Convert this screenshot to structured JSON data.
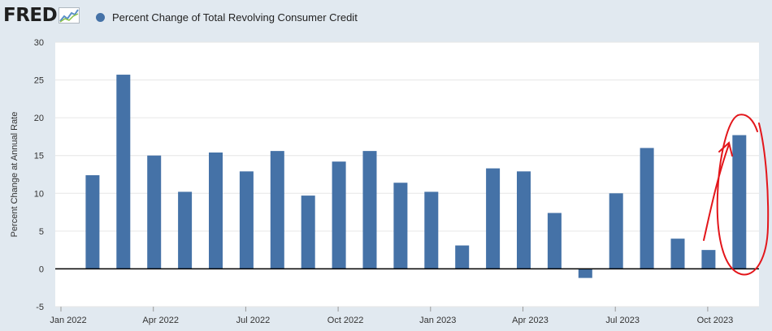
{
  "header": {
    "logo_text": "FRED",
    "legend_label": "Percent Change of Total Revolving Consumer Credit",
    "series_color": "#4572a7"
  },
  "chart_data": {
    "type": "bar",
    "ylabel": "Percent Change at Annual Rate",
    "ylim": [
      -5,
      30
    ],
    "yticks": [
      -5,
      0,
      5,
      10,
      15,
      20,
      25,
      30
    ],
    "grid": true,
    "x_tick_labels": [
      "Jan 2022",
      "Apr 2022",
      "Jul 2022",
      "Oct 2022",
      "Jan 2023",
      "Apr 2023",
      "Jul 2023",
      "Oct 2023"
    ],
    "categories": [
      "2022-02",
      "2022-03",
      "2022-04",
      "2022-05",
      "2022-06",
      "2022-07",
      "2022-08",
      "2022-09",
      "2022-10",
      "2022-11",
      "2022-12",
      "2023-01",
      "2023-02",
      "2023-03",
      "2023-04",
      "2023-05",
      "2023-06",
      "2023-07",
      "2023-08",
      "2023-09",
      "2023-10",
      "2023-11"
    ],
    "values": [
      12.4,
      25.7,
      15.0,
      10.2,
      15.4,
      12.9,
      15.6,
      9.7,
      14.2,
      15.6,
      11.4,
      10.2,
      3.1,
      13.3,
      12.9,
      7.4,
      -1.2,
      10.0,
      16.0,
      4.0,
      2.5,
      17.7
    ],
    "annotation": "red hand-drawn circle and arrow highlighting the final bar"
  }
}
